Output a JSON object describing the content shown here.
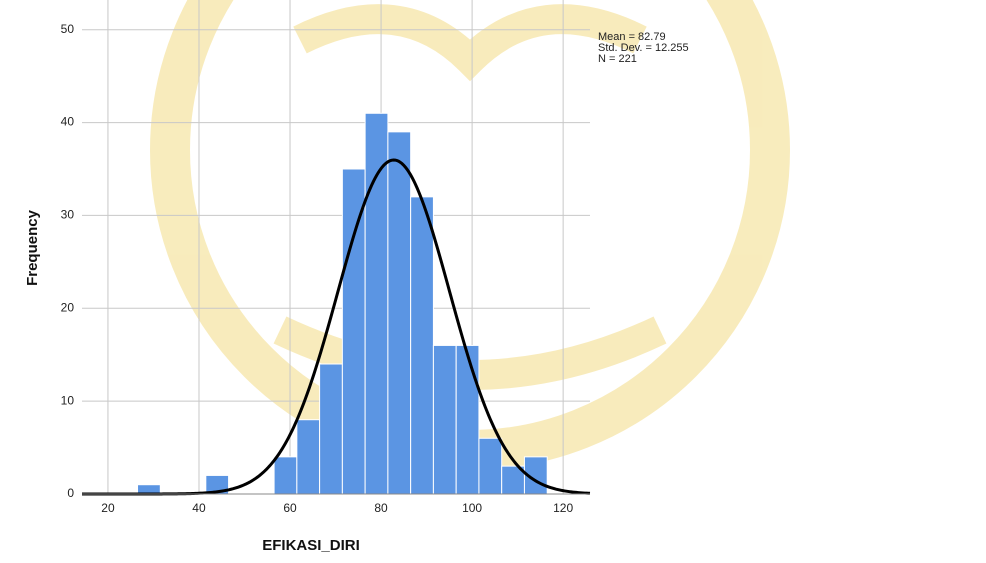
{
  "chart_data": {
    "type": "histogram",
    "x_label": "EFIKASI_DIRI",
    "y_label": "Frequency",
    "bins": [
      26.5,
      31.5,
      36.5,
      41.5,
      46.5,
      51.5,
      56.5,
      61.5,
      66.5,
      71.5,
      76.5,
      81.5,
      86.5,
      91.5,
      96.5,
      101.5,
      106.5,
      111.5,
      116.5
    ],
    "values": [
      1,
      0,
      0,
      2,
      0,
      0,
      4,
      8,
      14,
      35,
      41,
      39,
      32,
      16,
      16,
      6,
      3,
      4
    ],
    "color": "#5b95e3",
    "curve_color": "#000000",
    "normal_curve": {
      "mean": {
        "value": 82.79,
        "label": "Mean = 82.79"
      },
      "std_dev": {
        "value": 12.255,
        "label": "Std. Dev. = 12.255"
      },
      "n": {
        "value": 221,
        "label": "N = 221"
      }
    },
    "xlim": [
      14.3,
      125.9
    ],
    "ylim": [
      0,
      53.2
    ],
    "xticks": [
      20,
      40,
      60,
      80,
      100,
      120
    ],
    "yticks": [
      0,
      10,
      20,
      30,
      40,
      50
    ],
    "grid": true
  }
}
